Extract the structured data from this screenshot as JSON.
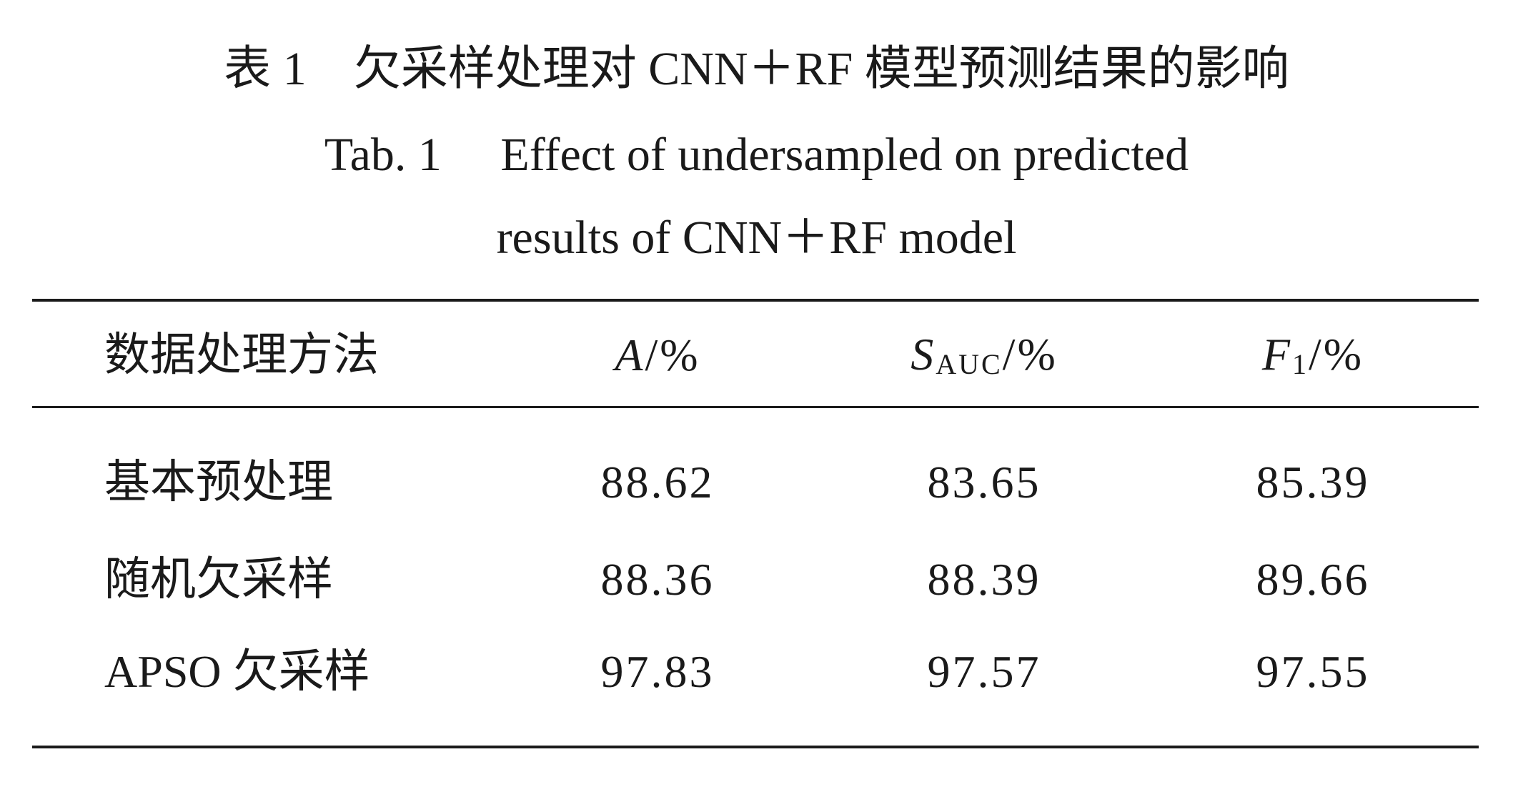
{
  "caption": {
    "zh": "表 1　欠采样处理对 CNN＋RF 模型预测结果的影响",
    "en_line1": "Tab. 1　 Effect of undersampled on predicted",
    "en_line2": "results of CNN＋RF model"
  },
  "table": {
    "header": [
      {
        "text": "数据处理方法"
      },
      {
        "symbol": "A",
        "unit": "/%"
      },
      {
        "symbol": "S",
        "subscript": "AUC",
        "unit": "/%"
      },
      {
        "symbol": "F",
        "subscript": "1",
        "unit": "/%"
      }
    ],
    "rows": [
      [
        "基本预处理",
        "88.62",
        "83.65",
        "85.39"
      ],
      [
        "随机欠采样",
        "88.36",
        "88.39",
        "89.66"
      ],
      [
        "APSO 欠采样",
        "97.83",
        "97.57",
        "97.55"
      ]
    ]
  }
}
